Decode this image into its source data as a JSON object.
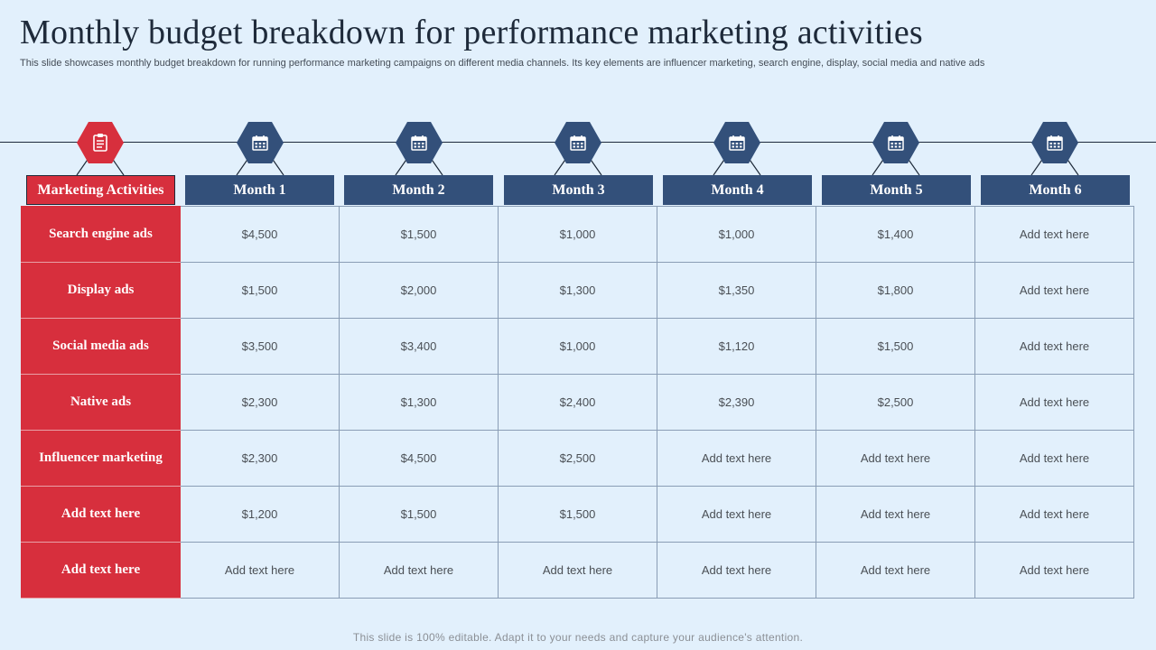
{
  "slide": {
    "title": "Monthly budget breakdown for performance marketing activities",
    "subtitle": "This slide showcases monthly budget breakdown for running performance marketing campaigns on different media channels. Its key elements are influencer marketing, search engine, display, social media and native ads",
    "footer": "This slide is 100% editable. Adapt it to your needs and capture your audience's attention."
  },
  "colors": {
    "accent_red": "#d72f3d",
    "accent_blue": "#33507a",
    "background": "#e2f0fc"
  },
  "table": {
    "corner_label": "Marketing Activities",
    "columns": [
      "Month 1",
      "Month 2",
      "Month 3",
      "Month 4",
      "Month 5",
      "Month 6"
    ],
    "icons": [
      "clipboard-icon",
      "calendar-icon",
      "calendar-icon",
      "calendar-icon",
      "calendar-icon",
      "calendar-icon",
      "calendar-icon"
    ],
    "rows": [
      {
        "label": "Search engine ads",
        "values": [
          "$4,500",
          "$1,500",
          "$1,000",
          "$1,000",
          "$1,400",
          "Add text here"
        ]
      },
      {
        "label": "Display ads",
        "values": [
          "$1,500",
          "$2,000",
          "$1,300",
          "$1,350",
          "$1,800",
          "Add text here"
        ]
      },
      {
        "label": "Social media ads",
        "values": [
          "$3,500",
          "$3,400",
          "$1,000",
          "$1,120",
          "$1,500",
          "Add text here"
        ]
      },
      {
        "label": "Native ads",
        "values": [
          "$2,300",
          "$1,300",
          "$2,400",
          "$2,390",
          "$2,500",
          "Add text here"
        ]
      },
      {
        "label": "Influencer marketing",
        "values": [
          "$2,300",
          "$4,500",
          "$2,500",
          "Add text here",
          "Add text here",
          "Add text here"
        ]
      },
      {
        "label": "Add text here",
        "values": [
          "$1,200",
          "$1,500",
          "$1,500",
          "Add text here",
          "Add text here",
          "Add text here"
        ]
      },
      {
        "label": "Add text here",
        "values": [
          "Add text here",
          "Add text here",
          "Add text here",
          "Add text here",
          "Add text here",
          "Add text here"
        ]
      }
    ]
  }
}
